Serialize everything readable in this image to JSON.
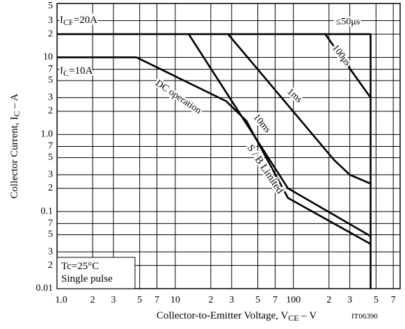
{
  "chart_data": {
    "type": "line",
    "x_label": {
      "parts": [
        "Collector-to-Emitter Voltage, V",
        "CE",
        " – V"
      ]
    },
    "y_label": {
      "parts": [
        "Collector Current, I",
        "C",
        " – A"
      ]
    },
    "xscale": "log",
    "yscale": "log",
    "grid": true,
    "color": "#000000",
    "xlim": [
      1,
      800
    ],
    "ylim": [
      0.01,
      50
    ],
    "xticks": [
      {
        "value": 1,
        "label": "1.0"
      },
      2,
      3,
      5,
      7,
      10,
      {
        "value": 20,
        "label": "2"
      },
      {
        "value": 30,
        "label": "3"
      },
      {
        "value": 50,
        "label": "5"
      },
      {
        "value": 70,
        "label": "7"
      },
      100,
      {
        "value": 200,
        "label": "2"
      },
      {
        "value": 300,
        "label": "3"
      },
      {
        "value": 500,
        "label": "5"
      },
      {
        "value": 700,
        "label": "7"
      }
    ],
    "yticks": [
      0.01,
      {
        "value": 0.02,
        "label": "2"
      },
      {
        "value": 0.03,
        "label": "3"
      },
      {
        "value": 0.05,
        "label": "5"
      },
      {
        "value": 0.07,
        "label": "7"
      },
      0.1,
      {
        "value": 0.2,
        "label": "2"
      },
      {
        "value": 0.3,
        "label": "3"
      },
      {
        "value": 0.5,
        "label": "5"
      },
      {
        "value": 0.7,
        "label": "7"
      },
      {
        "value": 1,
        "label": "1.0"
      },
      {
        "value": 2,
        "label": "2"
      },
      {
        "value": 3,
        "label": "3"
      },
      {
        "value": 5,
        "label": "5"
      },
      {
        "value": 7,
        "label": "7"
      },
      10,
      {
        "value": 20,
        "label": "2"
      },
      {
        "value": 30,
        "label": "3"
      },
      {
        "value": 50,
        "label": "5"
      }
    ],
    "series": [
      {
        "name": "≤50μs",
        "x": [
          1,
          450,
          450
        ],
        "values": [
          20,
          20,
          0.01
        ]
      },
      {
        "name": "100μs",
        "x": [
          186,
          450
        ],
        "values": [
          20,
          3
        ]
      },
      {
        "name": "1ms",
        "x": [
          28,
          220,
          300,
          450
        ],
        "values": [
          20,
          0.47,
          0.3,
          0.23
        ]
      },
      {
        "name": "10ms",
        "x": [
          13,
          90,
          450
        ],
        "values": [
          20,
          0.2,
          0.048
        ]
      },
      {
        "name": "DC operation",
        "x": [
          1,
          4.7,
          27,
          40,
          90,
          450
        ],
        "values": [
          10,
          10,
          2.7,
          1.5,
          0.15,
          0.038
        ]
      }
    ],
    "annotations": [
      {
        "parts": [
          "I",
          "CP",
          "=20A"
        ]
      },
      {
        "parts": [
          "I",
          "C",
          "=10A"
        ]
      },
      {
        "parts": [
          "S / B Limited"
        ]
      },
      {
        "parts": [
          "Tc=25°C"
        ]
      },
      {
        "parts": [
          "Single pulse"
        ]
      },
      {
        "parts": [
          "IT06390"
        ]
      }
    ]
  }
}
